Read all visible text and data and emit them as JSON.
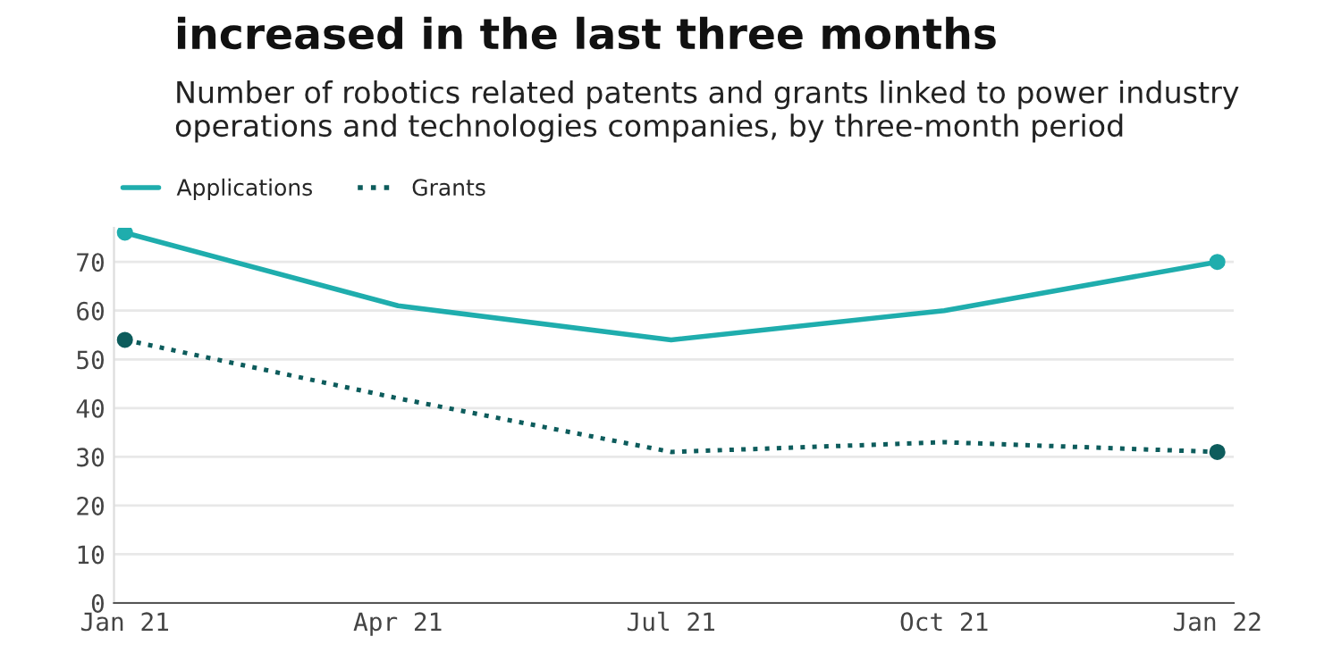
{
  "chart_data": {
    "type": "line",
    "title": "increased in the last three months",
    "subtitle": "Number of robotics related patents and grants linked to power industry operations and technologies companies, by three-month period",
    "categories": [
      "Jan 21",
      "Apr 21",
      "Jul 21",
      "Oct 21",
      "Jan 22"
    ],
    "series": [
      {
        "name": "Applications",
        "color": "#1fadad",
        "line_style": "solid",
        "values": [
          76,
          61,
          54,
          60,
          70
        ]
      },
      {
        "name": "Grants",
        "color": "#0d5c5c",
        "line_style": "dotted",
        "values": [
          54,
          42,
          31,
          33,
          31
        ]
      }
    ],
    "ylim": [
      0,
      77
    ],
    "yticks": [
      0,
      10,
      20,
      30,
      40,
      50,
      60,
      70
    ],
    "grid": "y",
    "legend": "top left"
  }
}
